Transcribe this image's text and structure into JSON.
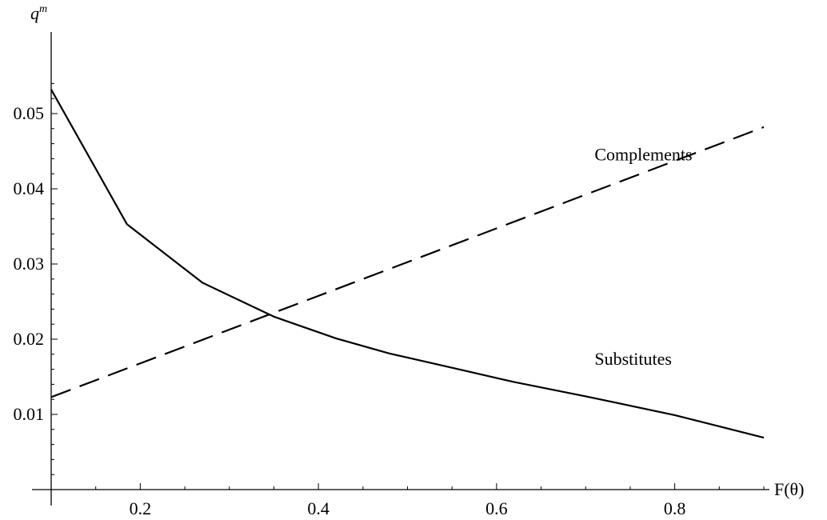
{
  "chart_data": {
    "type": "line",
    "xlabel": "F(θ)",
    "ylabel_base": "q",
    "ylabel_sup": "m",
    "xlim": [
      0.1,
      0.9
    ],
    "ylim": [
      0.0,
      0.055
    ],
    "x_ticks": [
      {
        "value": 0.2,
        "label": "0.2"
      },
      {
        "value": 0.4,
        "label": "0.4"
      },
      {
        "value": 0.6,
        "label": "0.6"
      },
      {
        "value": 0.8,
        "label": "0.8"
      }
    ],
    "y_ticks": [
      {
        "value": 0.01,
        "label": "0.01"
      },
      {
        "value": 0.02,
        "label": "0.02"
      },
      {
        "value": 0.03,
        "label": "0.03"
      },
      {
        "value": 0.04,
        "label": "0.04"
      },
      {
        "value": 0.05,
        "label": "0.05"
      }
    ],
    "grid": false,
    "series": [
      {
        "name": "Substitutes",
        "style": "solid",
        "color": "#000000",
        "x": [
          0.1,
          0.185,
          0.27,
          0.35,
          0.42,
          0.48,
          0.55,
          0.62,
          0.7,
          0.8,
          0.9
        ],
        "y": [
          0.0532,
          0.0353,
          0.0275,
          0.023,
          0.0201,
          0.0181,
          0.0162,
          0.0143,
          0.0124,
          0.0099,
          0.0069
        ]
      },
      {
        "name": "Complements",
        "style": "dashed",
        "color": "#000000",
        "x": [
          0.1,
          0.9
        ],
        "y": [
          0.0123,
          0.0482
        ]
      }
    ],
    "annotations": [
      {
        "text": "Complements",
        "x": 0.71,
        "y": 0.0438
      },
      {
        "text": "Substitutes",
        "x": 0.71,
        "y": 0.0166
      }
    ]
  }
}
